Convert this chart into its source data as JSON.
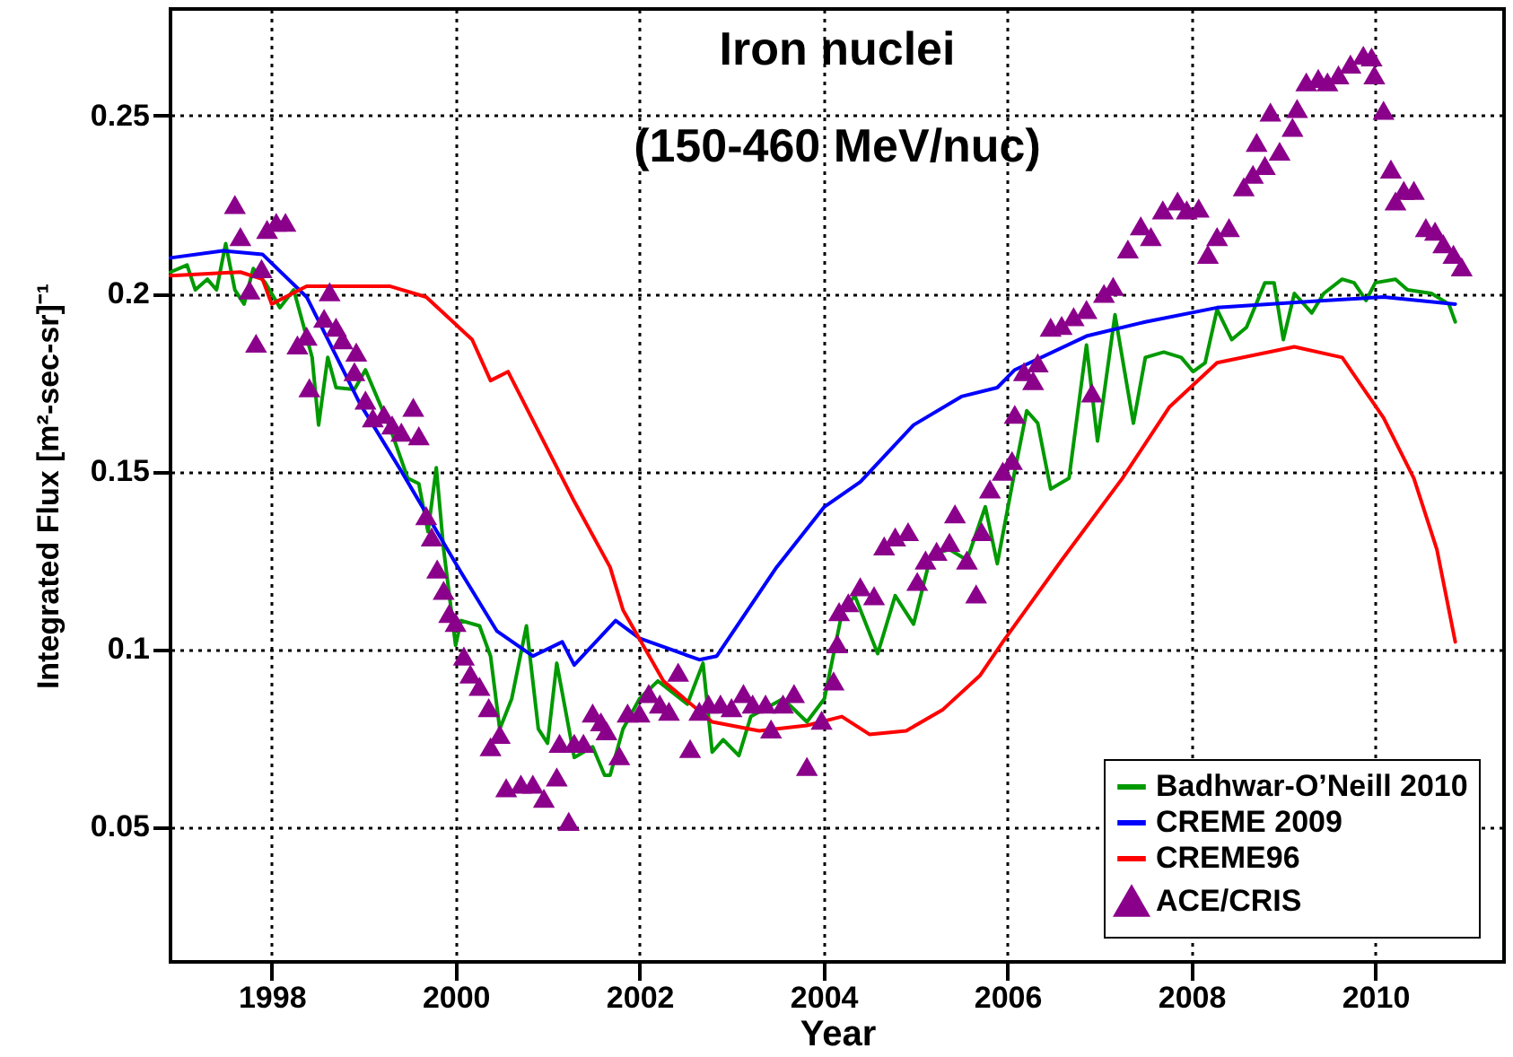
{
  "chart_data": {
    "type": "line",
    "title": "Iron nuclei",
    "subtitle": "(150-460 MeV/nuc)",
    "xlabel": "Year",
    "ylabel": "Integrated Flux [m²-sec-sr]⁻¹",
    "xlim": [
      1996.9,
      2011.4
    ],
    "xticks": [
      1998,
      2000,
      2002,
      2004,
      2006,
      2008,
      2010
    ],
    "ylim": [
      0.012,
      0.28
    ],
    "yticks": [
      0.05,
      0.1,
      0.15,
      0.2,
      0.25
    ],
    "grid": true,
    "legend": "bottom right",
    "line_style": "solid",
    "series": [
      {
        "name": "Badhwar-O’Neill 2010",
        "color": "#009900",
        "type": "line",
        "x": [
          1996.9,
          1997.08,
          1997.17,
          1997.3,
          1997.4,
          1997.5,
          1997.6,
          1997.7,
          1997.8,
          1997.93,
          1998.09,
          1998.24,
          1998.44,
          1998.51,
          1998.61,
          1998.7,
          1998.9,
          1999.02,
          1999.29,
          1999.48,
          1999.6,
          1999.7,
          1999.79,
          1999.87,
          2000.0,
          2000.06,
          2000.26,
          2000.38,
          2000.48,
          2000.61,
          2000.77,
          2000.9,
          2001.0,
          2001.1,
          2001.29,
          2001.49,
          2001.62,
          2001.68,
          2001.82,
          2002.0,
          2002.2,
          2002.52,
          2002.69,
          2002.79,
          2002.91,
          2003.08,
          2003.21,
          2003.56,
          2003.82,
          2004.01,
          2004.2,
          2004.34,
          2004.59,
          2004.78,
          2004.98,
          2005.17,
          2005.37,
          2005.56,
          2005.76,
          2005.89,
          2006.08,
          2006.21,
          2006.33,
          2006.47,
          2006.67,
          2006.86,
          2006.98,
          2007.17,
          2007.37,
          2007.5,
          2007.7,
          2007.89,
          2008.02,
          2008.15,
          2008.28,
          2008.44,
          2008.6,
          2008.8,
          2008.9,
          2009.0,
          2009.12,
          2009.31,
          2009.44,
          2009.64,
          2009.77,
          2009.9,
          2010.0,
          2010.22,
          2010.35,
          2010.61,
          2010.8,
          2010.87
        ],
        "values": [
          0.206,
          0.208,
          0.201,
          0.204,
          0.201,
          0.214,
          0.201,
          0.197,
          0.207,
          0.203,
          0.196,
          0.201,
          0.182,
          0.163,
          0.182,
          0.1735,
          0.173,
          0.1785,
          0.162,
          0.148,
          0.1465,
          0.133,
          0.151,
          0.128,
          0.101,
          0.108,
          0.1065,
          0.098,
          0.0775,
          0.086,
          0.1065,
          0.0775,
          0.0735,
          0.096,
          0.0695,
          0.0725,
          0.0645,
          0.0645,
          0.0775,
          0.086,
          0.091,
          0.0845,
          0.096,
          0.071,
          0.0745,
          0.07,
          0.081,
          0.086,
          0.0795,
          0.086,
          0.11,
          0.115,
          0.0987,
          0.115,
          0.107,
          0.1265,
          0.128,
          0.125,
          0.14,
          0.124,
          0.15,
          0.167,
          0.1635,
          0.145,
          0.148,
          0.1855,
          0.1585,
          0.194,
          0.1635,
          0.182,
          0.1835,
          0.182,
          0.178,
          0.1805,
          0.1955,
          0.187,
          0.1905,
          0.203,
          0.203,
          0.187,
          0.2,
          0.1945,
          0.2,
          0.204,
          0.203,
          0.198,
          0.203,
          0.204,
          0.201,
          0.2,
          0.197,
          0.192
        ]
      },
      {
        "name": "CREME 2009",
        "color": "#0000ff",
        "type": "line",
        "x": [
          1996.9,
          1997.47,
          1997.9,
          1998.38,
          1998.96,
          1999.41,
          2000.06,
          2000.45,
          2000.84,
          2001.16,
          2001.29,
          2001.74,
          2002.0,
          2002.65,
          2002.84,
          2003.49,
          2004.01,
          2004.4,
          2004.98,
          2005.5,
          2005.89,
          2006.08,
          2006.86,
          2007.5,
          2008.28,
          2009.44,
          2010.09,
          2010.87
        ],
        "values": [
          0.21,
          0.212,
          0.211,
          0.199,
          0.169,
          0.15,
          0.1215,
          0.105,
          0.098,
          0.102,
          0.0955,
          0.108,
          0.103,
          0.097,
          0.098,
          0.123,
          0.14,
          0.147,
          0.163,
          0.171,
          0.1735,
          0.1785,
          0.188,
          0.192,
          0.196,
          0.198,
          0.199,
          0.197
        ]
      },
      {
        "name": "CREME96",
        "color": "#ff0000",
        "type": "line",
        "x": [
          1996.9,
          1997.66,
          1997.9,
          1998.0,
          1998.38,
          1999.29,
          1999.68,
          2000.18,
          2000.38,
          2000.57,
          2001.29,
          2001.68,
          2001.82,
          2002.26,
          2002.79,
          2003.3,
          2003.82,
          2004.2,
          2004.5,
          2004.9,
          2005.3,
          2005.7,
          2005.95,
          2006.59,
          2007.25,
          2007.76,
          2008.28,
          2009.12,
          2009.64,
          2010.09,
          2010.42,
          2010.67,
          2010.87
        ],
        "values": [
          0.205,
          0.206,
          0.204,
          0.197,
          0.202,
          0.202,
          0.199,
          0.187,
          0.1755,
          0.178,
          0.1415,
          0.123,
          0.111,
          0.091,
          0.0795,
          0.077,
          0.0785,
          0.081,
          0.076,
          0.077,
          0.083,
          0.0925,
          0.102,
          0.125,
          0.148,
          0.168,
          0.1805,
          0.185,
          0.182,
          0.165,
          0.148,
          0.128,
          0.102
        ]
      },
      {
        "name": "ACE/CRIS",
        "color": "#8b008b",
        "type": "scatter",
        "marker": "triangle",
        "x": [
          1997.6,
          1997.66,
          1997.76,
          1997.83,
          1997.89,
          1997.95,
          1998.05,
          1998.15,
          1998.28,
          1998.38,
          1998.41,
          1998.57,
          1998.63,
          1998.7,
          1998.77,
          1998.9,
          1998.92,
          1999.02,
          1999.1,
          1999.22,
          1999.31,
          1999.41,
          1999.54,
          1999.6,
          1999.68,
          1999.74,
          1999.8,
          1999.87,
          1999.93,
          2000.0,
          2000.09,
          2000.16,
          2000.26,
          2000.36,
          2000.38,
          2000.48,
          2000.55,
          2000.71,
          2000.84,
          2000.96,
          2001.1,
          2001.13,
          2001.23,
          2001.29,
          2001.39,
          2001.49,
          2001.58,
          2001.64,
          2001.78,
          2001.87,
          2002.0,
          2002.1,
          2002.22,
          2002.32,
          2002.42,
          2002.55,
          2002.65,
          2002.75,
          2002.88,
          2003.0,
          2003.13,
          2003.23,
          2003.37,
          2003.43,
          2003.56,
          2003.68,
          2003.82,
          2003.98,
          2004.11,
          2004.15,
          2004.17,
          2004.27,
          2004.4,
          2004.55,
          2004.66,
          2004.78,
          2004.92,
          2005.02,
          2005.11,
          2005.23,
          2005.37,
          2005.43,
          2005.56,
          2005.66,
          2005.72,
          2005.81,
          2005.95,
          2006.05,
          2006.08,
          2006.18,
          2006.28,
          2006.33,
          2006.47,
          2006.59,
          2006.72,
          2006.86,
          2006.92,
          2007.05,
          2007.15,
          2007.31,
          2007.45,
          2007.56,
          2007.69,
          2007.85,
          2007.95,
          2008.08,
          2008.18,
          2008.28,
          2008.41,
          2008.57,
          2008.67,
          2008.71,
          2008.8,
          2008.86,
          2008.96,
          2009.1,
          2009.15,
          2009.25,
          2009.38,
          2009.48,
          2009.6,
          2009.73,
          2009.87,
          2009.96,
          2009.99,
          2010.09,
          2010.17,
          2010.22,
          2010.31,
          2010.42,
          2010.55,
          2010.65,
          2010.74,
          2010.85,
          2010.94
        ],
        "values": [
          0.225,
          0.216,
          0.201,
          0.186,
          0.207,
          0.218,
          0.22,
          0.22,
          0.1855,
          0.188,
          0.1735,
          0.193,
          0.2005,
          0.1905,
          0.187,
          0.178,
          0.1835,
          0.17,
          0.165,
          0.166,
          0.163,
          0.161,
          0.168,
          0.16,
          0.1375,
          0.1315,
          0.1225,
          0.1165,
          0.11,
          0.1075,
          0.098,
          0.093,
          0.0895,
          0.0835,
          0.0725,
          0.076,
          0.061,
          0.062,
          0.062,
          0.058,
          0.064,
          0.0735,
          0.0515,
          0.0735,
          0.0735,
          0.082,
          0.0795,
          0.077,
          0.07,
          0.082,
          0.082,
          0.0875,
          0.0845,
          0.0825,
          0.0935,
          0.072,
          0.0825,
          0.0845,
          0.0845,
          0.0835,
          0.0875,
          0.0845,
          0.0845,
          0.0775,
          0.0845,
          0.0875,
          0.067,
          0.08,
          0.091,
          0.1015,
          0.1105,
          0.113,
          0.1175,
          0.115,
          0.129,
          0.1315,
          0.133,
          0.119,
          0.125,
          0.1275,
          0.13,
          0.138,
          0.125,
          0.1155,
          0.133,
          0.145,
          0.15,
          0.153,
          0.166,
          0.178,
          0.1755,
          0.1805,
          0.1905,
          0.191,
          0.1935,
          0.1955,
          0.172,
          0.2,
          0.202,
          0.2125,
          0.219,
          0.216,
          0.2235,
          0.226,
          0.2235,
          0.224,
          0.211,
          0.216,
          0.2185,
          0.23,
          0.2335,
          0.2425,
          0.236,
          0.251,
          0.24,
          0.2467,
          0.252,
          0.2595,
          0.2605,
          0.2595,
          0.2615,
          0.2645,
          0.267,
          0.2665,
          0.2615,
          0.2515,
          0.235,
          0.226,
          0.229,
          0.229,
          0.2185,
          0.2175,
          0.214,
          0.211,
          0.2075
        ]
      }
    ]
  }
}
